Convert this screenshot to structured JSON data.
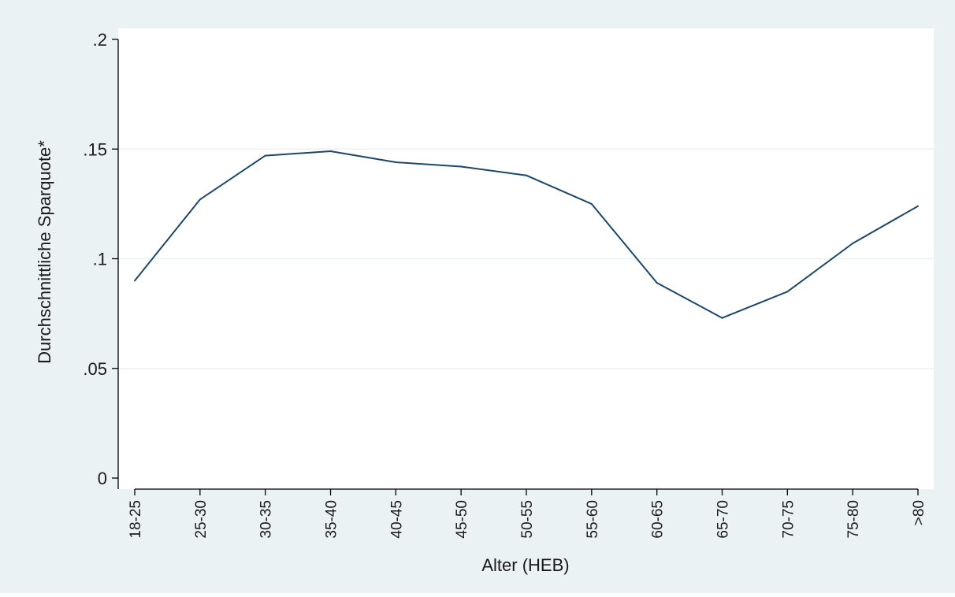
{
  "colors": {
    "outer_background": "#eaf2f3",
    "plot_background": "#ffffff",
    "gridline": "#eaf2f3",
    "line": "#1a476f",
    "axis": "#000000"
  },
  "chart_data": {
    "type": "line",
    "title": "",
    "xlabel": "Alter (HEB)",
    "ylabel": "Durchschnittliche Sparquote*",
    "categories": [
      "18-25",
      "25-30",
      "30-35",
      "35-40",
      "40-45",
      "45-50",
      "50-55",
      "55-60",
      "60-65",
      "65-70",
      "70-75",
      "75-80",
      ">80"
    ],
    "series": [
      {
        "values": [
          0.09,
          0.127,
          0.147,
          0.149,
          0.144,
          0.142,
          0.138,
          0.125,
          0.089,
          0.073,
          0.085,
          0.107,
          0.124
        ]
      }
    ],
    "ylim": [
      0,
      0.2
    ],
    "yticks": [
      {
        "value": 0,
        "label": "0"
      },
      {
        "value": 0.05,
        "label": ".05"
      },
      {
        "value": 0.1,
        "label": ".1"
      },
      {
        "value": 0.15,
        "label": ".15"
      },
      {
        "value": 0.2,
        "label": ".2"
      }
    ],
    "grid": true,
    "legend": "none"
  }
}
